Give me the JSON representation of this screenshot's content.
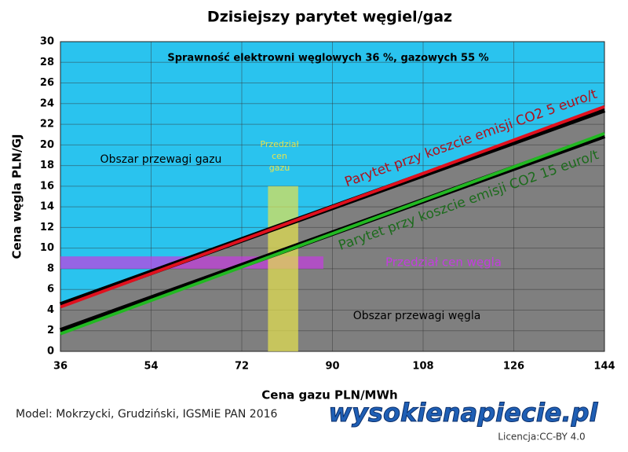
{
  "chart_data": {
    "type": "line",
    "title": "Dzisiejszy parytet węgiel/gaz",
    "subtitle": "Sprawność elektrowni węglowych 36 %, gazowych 55 %",
    "x_label": "Cena gazu PLN/MWh",
    "y_label": "Cena węgla PLN/GJ",
    "xlim": [
      36,
      144
    ],
    "xticks": [
      36,
      54,
      72,
      90,
      108,
      126,
      144
    ],
    "ylim": [
      0,
      30
    ],
    "yticks": [
      0,
      2,
      4,
      6,
      8,
      10,
      12,
      14,
      16,
      18,
      20,
      22,
      24,
      26,
      28,
      30
    ],
    "grid": true,
    "upper_color": "#2ac3ee",
    "lower_color": "#7f7f7f",
    "x": [
      36,
      144
    ],
    "series": [
      {
        "color": "#000000",
        "values": [
          4.5,
          23.4
        ]
      },
      {
        "name": "Parytet przy koszcie emisji CO2 5 euro/t",
        "color": "#e0101e",
        "values": [
          4.3,
          23.7
        ]
      },
      {
        "color": "#000000",
        "values": [
          2.0,
          20.9
        ]
      },
      {
        "name": "Parytet przy koszcie emisji CO2 15 euro/t",
        "color": "#22b822",
        "values": [
          1.7,
          21.1
        ]
      }
    ],
    "bands": [
      {
        "label": "Przedział cen węgla",
        "color": "#c43ce0",
        "x": [
          36,
          88.2
        ],
        "y": [
          8,
          9.2
        ]
      },
      {
        "label_lines": [
          "Przedział",
          "cen",
          "gazu"
        ],
        "color": "#e6e34e",
        "x": [
          77.2,
          83.2
        ],
        "y": [
          0,
          16
        ]
      }
    ],
    "annotations": [
      "Obszar przewagi gazu",
      "Obszar przewagi węgla"
    ]
  },
  "footer": {
    "source": "Model: Mokrzycki, Grudziński, IGSMiE PAN 2016",
    "logo": "wysokienapiecie.pl",
    "license": "Licencja:CC-BY 4.0"
  }
}
